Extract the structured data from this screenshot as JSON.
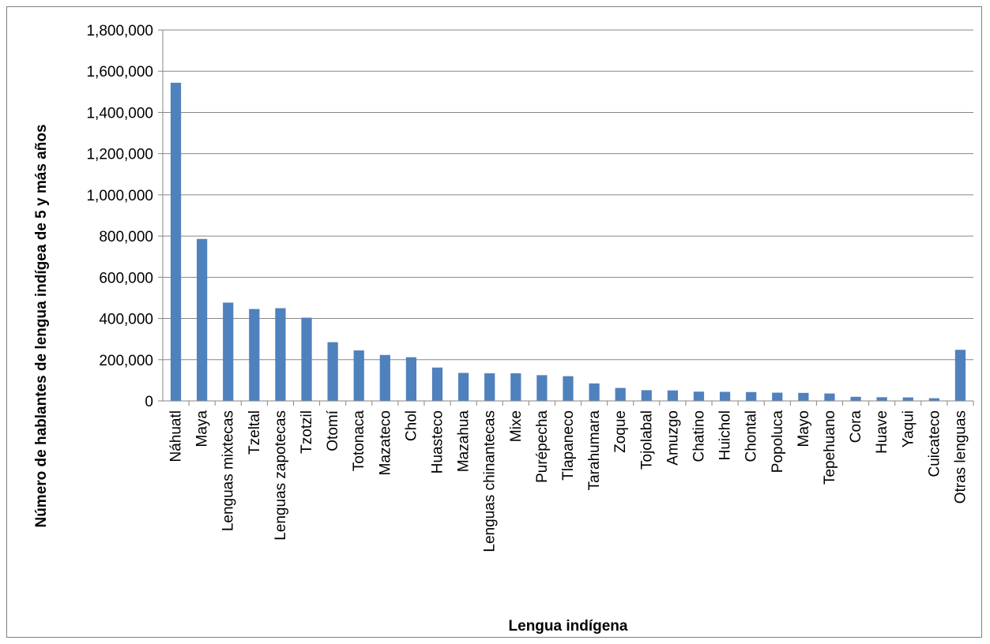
{
  "chart_data": {
    "type": "bar",
    "title": "",
    "xlabel": "Lengua indígena",
    "ylabel": "Número de hablantes de lengua indígea de 5 y más años",
    "ylim": [
      0,
      1800000
    ],
    "y_ticks": [
      "0",
      "200,000",
      "400,000",
      "600,000",
      "800,000",
      "1,000,000",
      "1,200,000",
      "1,400,000",
      "1,600,000",
      "1,800,000"
    ],
    "grid": true,
    "legend": "none",
    "categories": [
      "Náhuatl",
      "Maya",
      "Lenguas mixtecas",
      "Tzeltal",
      "Lenguas zapotecas",
      "Tzotzil",
      "Otomí",
      "Totonaca",
      "Mazateco",
      "Chol",
      "Huasteco",
      "Mazahua",
      "Lenguas chinantecas",
      "Mixe",
      "Purépecha",
      "Tlapaneco",
      "Tarahumara",
      "Zoque",
      "Tojolabal",
      "Amuzgo",
      "Chatino",
      "Huichol",
      "Chontal",
      "Popoluca",
      "Mayo",
      "Tepehuano",
      "Cora",
      "Huave",
      "Yaqui",
      "Cuicateco",
      "Otras lenguas"
    ],
    "values": [
      1544000,
      786000,
      477000,
      446000,
      450000,
      404000,
      285000,
      245000,
      223000,
      212000,
      162000,
      136000,
      134000,
      134000,
      125000,
      120000,
      85000,
      63000,
      52000,
      51000,
      45000,
      44000,
      43000,
      40000,
      39000,
      36000,
      20000,
      18000,
      17000,
      13000,
      248000
    ],
    "colors": {
      "bar": "#4f81bd",
      "grid": "#868686",
      "axis": "#868686"
    }
  }
}
